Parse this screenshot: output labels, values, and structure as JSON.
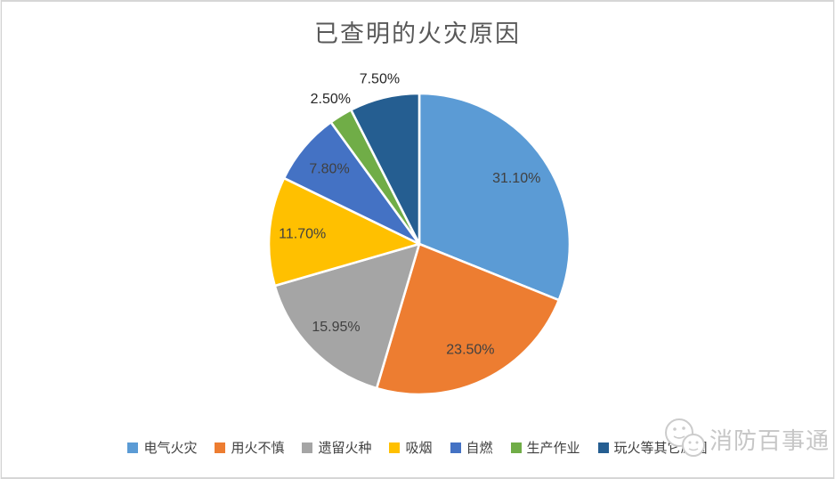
{
  "title": "已查明的火灾原因",
  "watermark": {
    "text": "消防百事通",
    "icon": "mascot-faces-logo"
  },
  "colors": {
    "background": "#ffffff",
    "frame_border": "#d6d6d6",
    "title_text": "#595959",
    "legend_text": "#404040",
    "label_inside": "#404040",
    "label_outside": "#262626",
    "slice_stroke": "#ffffff",
    "watermark": "#c6c6c6"
  },
  "chart_data": {
    "type": "pie",
    "title": "已查明的火灾原因",
    "direction": "clockwise",
    "start_angle_deg": 0,
    "legend_position": "bottom",
    "slices": [
      {
        "label": "电气火灾",
        "value": 31.1,
        "display": "31.10%",
        "color": "#5B9BD5",
        "label_position": "inside"
      },
      {
        "label": "用火不慎",
        "value": 23.5,
        "display": "23.50%",
        "color": "#ED7D31",
        "label_position": "inside"
      },
      {
        "label": "遗留火种",
        "value": 15.95,
        "display": "15.95%",
        "color": "#A5A5A5",
        "label_position": "inside"
      },
      {
        "label": "吸烟",
        "value": 11.7,
        "display": "11.70%",
        "color": "#FFC000",
        "label_position": "inside"
      },
      {
        "label": "自燃",
        "value": 7.8,
        "display": "7.80%",
        "color": "#4472C4",
        "label_position": "inside"
      },
      {
        "label": "生产作业",
        "value": 2.5,
        "display": "2.50%",
        "color": "#70AD47",
        "label_position": "outside"
      },
      {
        "label": "玩火等其它原因",
        "value": 7.5,
        "display": "7.50%",
        "color": "#255E91",
        "label_position": "outside"
      }
    ]
  }
}
